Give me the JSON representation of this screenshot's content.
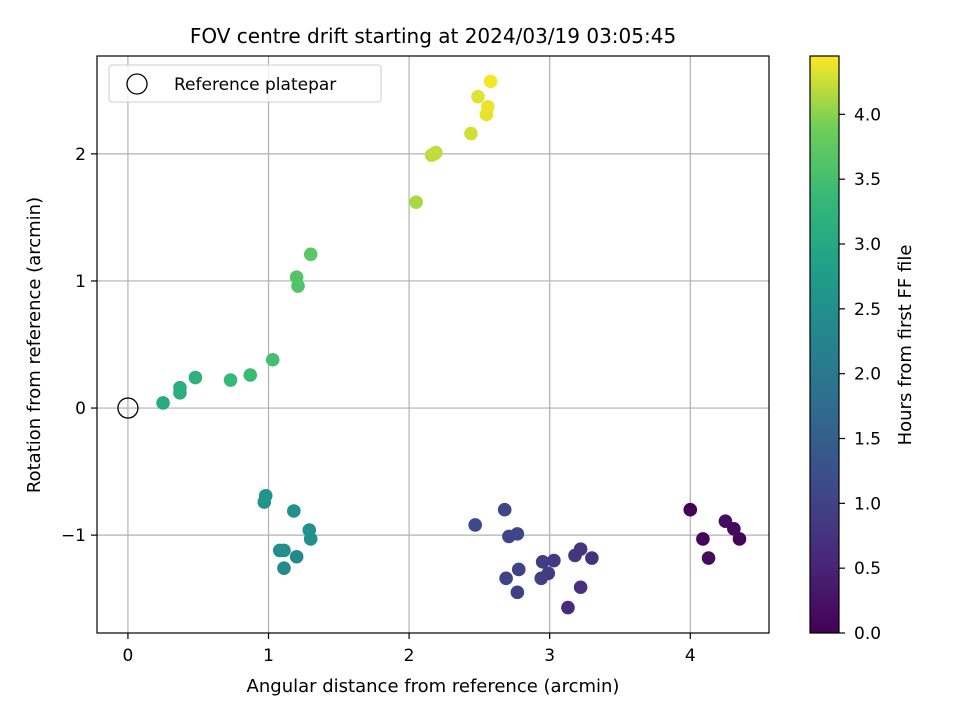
{
  "chart_data": {
    "type": "scatter",
    "title": "FOV centre drift starting at 2024/03/19 03:05:45",
    "xlabel": "Angular distance from reference (arcmin)",
    "ylabel": "Rotation from reference (arcmin)",
    "xlim": [
      -0.22,
      4.56
    ],
    "ylim": [
      -1.77,
      2.77
    ],
    "xticks": [
      0,
      1,
      2,
      3,
      4
    ],
    "yticks": [
      -1,
      0,
      1,
      2
    ],
    "grid": true,
    "legend": {
      "position": "upper-left",
      "entries": [
        "Reference platepar"
      ]
    },
    "colorbar": {
      "label": "Hours from first FF file",
      "colormap": "viridis",
      "range": [
        0.0,
        4.45
      ],
      "ticks": [
        "0.0",
        "0.5",
        "1.0",
        "1.5",
        "2.0",
        "2.5",
        "3.0",
        "3.5",
        "4.0"
      ]
    },
    "reference_point": {
      "x": 0,
      "y": 0
    },
    "points": [
      {
        "x": 4.0,
        "y": -0.8,
        "c": 0.0
      },
      {
        "x": 4.09,
        "y": -1.03,
        "c": 0.07
      },
      {
        "x": 4.13,
        "y": -1.18,
        "c": 0.14
      },
      {
        "x": 4.25,
        "y": -0.89,
        "c": 0.18
      },
      {
        "x": 4.31,
        "y": -0.95,
        "c": 0.1
      },
      {
        "x": 4.35,
        "y": -1.03,
        "c": 0.05
      },
      {
        "x": 3.13,
        "y": -1.57,
        "c": 0.62
      },
      {
        "x": 3.22,
        "y": -1.41,
        "c": 0.68
      },
      {
        "x": 3.3,
        "y": -1.18,
        "c": 0.73
      },
      {
        "x": 3.22,
        "y": -1.11,
        "c": 0.78
      },
      {
        "x": 3.18,
        "y": -1.16,
        "c": 0.83
      },
      {
        "x": 3.03,
        "y": -1.2,
        "c": 0.86
      },
      {
        "x": 2.99,
        "y": -1.3,
        "c": 0.88
      },
      {
        "x": 2.95,
        "y": -1.21,
        "c": 0.91
      },
      {
        "x": 2.94,
        "y": -1.34,
        "c": 0.93
      },
      {
        "x": 2.77,
        "y": -1.45,
        "c": 0.96
      },
      {
        "x": 2.78,
        "y": -1.27,
        "c": 0.99
      },
      {
        "x": 2.69,
        "y": -1.34,
        "c": 1.01
      },
      {
        "x": 2.71,
        "y": -1.01,
        "c": 1.04
      },
      {
        "x": 2.77,
        "y": -0.99,
        "c": 1.06
      },
      {
        "x": 2.68,
        "y": -0.8,
        "c": 1.09
      },
      {
        "x": 2.47,
        "y": -0.92,
        "c": 1.11
      },
      {
        "x": 1.2,
        "y": -1.17,
        "c": 2.35
      },
      {
        "x": 1.11,
        "y": -1.26,
        "c": 2.4
      },
      {
        "x": 1.08,
        "y": -1.12,
        "c": 2.43
      },
      {
        "x": 1.11,
        "y": -1.12,
        "c": 2.46
      },
      {
        "x": 1.3,
        "y": -1.03,
        "c": 2.48
      },
      {
        "x": 1.29,
        "y": -0.96,
        "c": 2.51
      },
      {
        "x": 1.18,
        "y": -0.81,
        "c": 2.53
      },
      {
        "x": 0.97,
        "y": -0.74,
        "c": 2.56
      },
      {
        "x": 0.98,
        "y": -0.69,
        "c": 2.59
      },
      {
        "x": 0.25,
        "y": 0.04,
        "c": 3.05
      },
      {
        "x": 0.37,
        "y": 0.12,
        "c": 3.1
      },
      {
        "x": 0.37,
        "y": 0.16,
        "c": 3.13
      },
      {
        "x": 0.48,
        "y": 0.24,
        "c": 3.18
      },
      {
        "x": 0.73,
        "y": 0.22,
        "c": 3.35
      },
      {
        "x": 0.87,
        "y": 0.26,
        "c": 3.4
      },
      {
        "x": 1.03,
        "y": 0.38,
        "c": 3.5
      },
      {
        "x": 1.21,
        "y": 0.96,
        "c": 3.6
      },
      {
        "x": 1.2,
        "y": 1.03,
        "c": 3.63
      },
      {
        "x": 1.3,
        "y": 1.21,
        "c": 3.72
      },
      {
        "x": 2.05,
        "y": 1.62,
        "c": 4.12
      },
      {
        "x": 2.16,
        "y": 1.99,
        "c": 4.18
      },
      {
        "x": 2.19,
        "y": 2.01,
        "c": 4.2
      },
      {
        "x": 2.18,
        "y": 2.0,
        "c": 4.22
      },
      {
        "x": 2.44,
        "y": 2.16,
        "c": 4.28
      },
      {
        "x": 2.49,
        "y": 2.45,
        "c": 4.33
      },
      {
        "x": 2.55,
        "y": 2.31,
        "c": 4.36
      },
      {
        "x": 2.56,
        "y": 2.37,
        "c": 4.38
      },
      {
        "x": 2.58,
        "y": 2.57,
        "c": 4.42
      }
    ]
  }
}
